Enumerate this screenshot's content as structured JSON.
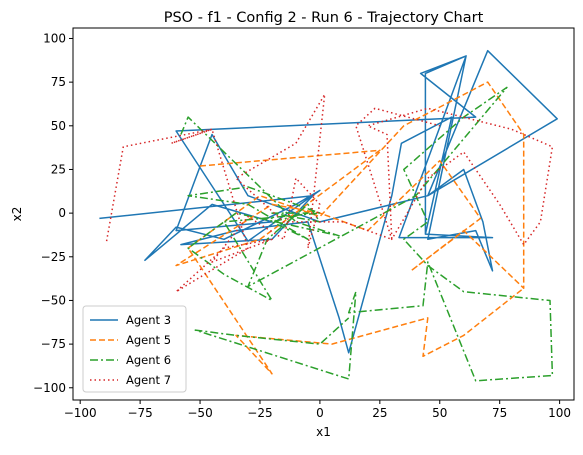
{
  "chart_data": {
    "type": "line",
    "title": "PSO - f1 - Config 2 - Run 6 - Trajectory Chart",
    "xlabel": "x1",
    "ylabel": "x2",
    "xlim": [
      -103,
      106
    ],
    "ylim": [
      -107,
      106
    ],
    "xticks": [
      -100,
      -75,
      -50,
      -25,
      0,
      25,
      50,
      75,
      100
    ],
    "yticks": [
      -100,
      -75,
      -50,
      -25,
      0,
      25,
      50,
      75,
      100
    ],
    "grid": false,
    "legend_position": "lower-left",
    "series": [
      {
        "name": "Agent 3",
        "color": "#1f77b4",
        "dash": "solid",
        "points": [
          [
            -92,
            -3
          ],
          [
            -3,
            10
          ],
          [
            -20,
            -15
          ],
          [
            -58,
            -18
          ],
          [
            -35,
            -10
          ],
          [
            -5,
            -5
          ],
          [
            8,
            -60
          ],
          [
            12,
            -80
          ],
          [
            30,
            10
          ],
          [
            34,
            40
          ],
          [
            55,
            55
          ],
          [
            44,
            -12
          ],
          [
            44,
            80
          ],
          [
            61,
            90
          ],
          [
            45,
            -15
          ],
          [
            65,
            -10
          ],
          [
            72,
            -33
          ],
          [
            68,
            -5
          ],
          [
            60,
            25
          ],
          [
            45,
            10
          ],
          [
            70,
            93
          ],
          [
            99,
            54
          ],
          [
            45,
            10
          ],
          [
            0,
            -5
          ],
          [
            -30,
            10
          ],
          [
            -45,
            45
          ],
          [
            -60,
            -10
          ],
          [
            -20,
            -5
          ],
          [
            -45,
            5
          ],
          [
            -73,
            -27
          ],
          [
            -60,
            -8
          ],
          [
            -40,
            -15
          ],
          [
            -10,
            5
          ],
          [
            0,
            13
          ],
          [
            -30,
            -16
          ],
          [
            -60,
            47
          ],
          [
            65,
            55
          ],
          [
            42,
            80
          ],
          [
            61,
            90
          ],
          [
            33,
            -14
          ],
          [
            72,
            -14
          ],
          [
            44,
            -12
          ]
        ]
      },
      {
        "name": "Agent 5",
        "color": "#ff7f0e",
        "dash": "6,3",
        "points": [
          [
            -50,
            27
          ],
          [
            25,
            36
          ],
          [
            -25,
            -15
          ],
          [
            -60,
            -30
          ],
          [
            -20,
            5
          ],
          [
            0,
            0
          ],
          [
            20,
            -10
          ],
          [
            50,
            30
          ],
          [
            67,
            -3
          ],
          [
            38,
            -33
          ],
          [
            60,
            -10
          ],
          [
            85,
            -43
          ],
          [
            85,
            45
          ],
          [
            70,
            75
          ],
          [
            35,
            50
          ],
          [
            0,
            -2
          ],
          [
            -25,
            10
          ],
          [
            -55,
            -20
          ],
          [
            -20,
            -92
          ],
          [
            -35,
            -70
          ],
          [
            5,
            -75
          ],
          [
            45,
            -60
          ],
          [
            43,
            -82
          ],
          [
            60,
            -70
          ],
          [
            85,
            -43
          ]
        ]
      },
      {
        "name": "Agent 6",
        "color": "#2ca02c",
        "dash": "8,3,2,3",
        "points": [
          [
            -58,
            45
          ],
          [
            -55,
            55
          ],
          [
            -10,
            -5
          ],
          [
            8,
            -13
          ],
          [
            -35,
            0
          ],
          [
            -55,
            -20
          ],
          [
            -40,
            -35
          ],
          [
            -20,
            -50
          ],
          [
            -40,
            -5
          ],
          [
            0,
            0
          ],
          [
            -30,
            15
          ],
          [
            -55,
            10
          ],
          [
            -30,
            5
          ],
          [
            -5,
            -15
          ],
          [
            -20,
            -5
          ],
          [
            -5,
            0
          ],
          [
            -20,
            0
          ],
          [
            0,
            -5
          ],
          [
            -5,
            5
          ],
          [
            -22,
            -15
          ],
          [
            -30,
            -42
          ],
          [
            20,
            -5
          ],
          [
            40,
            10
          ],
          [
            78,
            72
          ],
          [
            60,
            55
          ],
          [
            35,
            25
          ],
          [
            45,
            -5
          ],
          [
            35,
            -15
          ],
          [
            45,
            -30
          ],
          [
            60,
            -45
          ],
          [
            96,
            -50
          ],
          [
            97,
            -93
          ],
          [
            65,
            -96
          ],
          [
            45,
            -28
          ],
          [
            43,
            -53
          ],
          [
            12,
            -57
          ],
          [
            15,
            -45
          ],
          [
            12,
            -95
          ],
          [
            -52,
            -67
          ],
          [
            -35,
            -70
          ],
          [
            0,
            -75
          ],
          [
            12,
            -60
          ]
        ]
      },
      {
        "name": "Agent 7",
        "color": "#d62728",
        "dash": "1.5,3",
        "points": [
          [
            -89,
            -16
          ],
          [
            -82,
            38
          ],
          [
            -45,
            48
          ],
          [
            -62,
            40
          ],
          [
            -45,
            48
          ],
          [
            -30,
            -20
          ],
          [
            -60,
            -45
          ],
          [
            -40,
            -20
          ],
          [
            -20,
            -15
          ],
          [
            -45,
            -28
          ],
          [
            -30,
            -2
          ],
          [
            -15,
            -15
          ],
          [
            -10,
            20
          ],
          [
            0,
            5
          ],
          [
            -5,
            -20
          ],
          [
            2,
            68
          ],
          [
            -10,
            40
          ],
          [
            -35,
            20
          ],
          [
            -15,
            -5
          ],
          [
            0,
            -5
          ],
          [
            10,
            -5
          ],
          [
            30,
            -15
          ],
          [
            28,
            45
          ],
          [
            20,
            50
          ],
          [
            45,
            60
          ],
          [
            80,
            48
          ],
          [
            97,
            38
          ],
          [
            92,
            -5
          ],
          [
            85,
            -18
          ],
          [
            75,
            5
          ],
          [
            60,
            35
          ],
          [
            45,
            20
          ],
          [
            30,
            -15
          ],
          [
            15,
            50
          ],
          [
            23,
            60
          ],
          [
            50,
            50
          ]
        ]
      }
    ]
  }
}
